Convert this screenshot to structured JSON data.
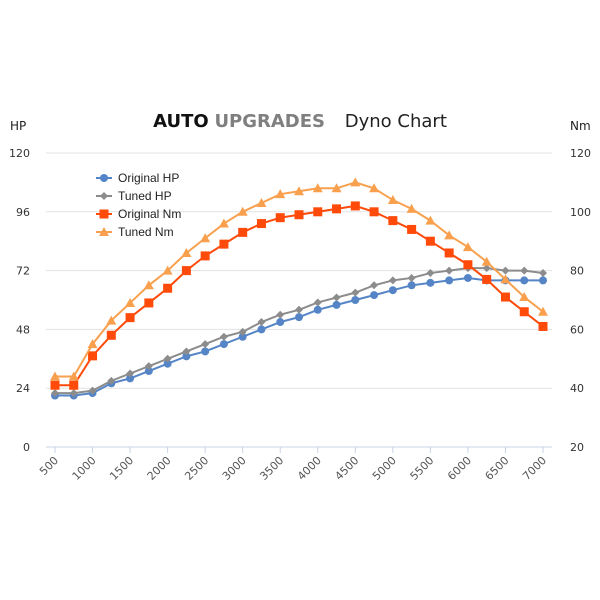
{
  "header": {
    "brand_part1": "AUTO",
    "brand_part2": "UPGRADES",
    "subtitle": "Dyno Chart",
    "left_unit": "HP",
    "right_unit": "Nm"
  },
  "chart_data": {
    "type": "line",
    "title": "AUTO UPGRADES Dyno Chart",
    "xlabel": "",
    "ylabel": "HP",
    "y2label": "Nm",
    "x": [
      500,
      750,
      1000,
      1250,
      1500,
      1750,
      2000,
      2250,
      2500,
      2750,
      3000,
      3250,
      3500,
      3750,
      4000,
      4250,
      4500,
      4750,
      5000,
      5250,
      5500,
      5750,
      6000,
      6250,
      6500,
      6750,
      7000
    ],
    "xticks": [
      "500",
      "1000",
      "1500",
      "2000",
      "2500",
      "3000",
      "3500",
      "4000",
      "4500",
      "5000",
      "5500",
      "6000",
      "6500",
      "7000"
    ],
    "ylim": [
      0,
      120
    ],
    "yticks": [
      "0",
      "24",
      "48",
      "72",
      "96",
      "120"
    ],
    "y2lim": [
      20,
      120
    ],
    "y2ticks": [
      "20",
      "40",
      "60",
      "80",
      "100",
      "120"
    ],
    "grid": true,
    "legend_position": "top-left",
    "series": [
      {
        "name": "Original HP",
        "axis": "left",
        "color": "#5585C6",
        "marker": "circle",
        "values": [
          21,
          21,
          22,
          26,
          28,
          31,
          34,
          37,
          39,
          42,
          45,
          48,
          51,
          53,
          56,
          58,
          60,
          62,
          64,
          66,
          67,
          68,
          69,
          68,
          68,
          68,
          68
        ]
      },
      {
        "name": "Tuned HP",
        "axis": "left",
        "color": "#8C8C8C",
        "marker": "diamond",
        "values": [
          22,
          22,
          23,
          27,
          30,
          33,
          36,
          39,
          42,
          45,
          47,
          51,
          54,
          56,
          59,
          61,
          63,
          66,
          68,
          69,
          71,
          72,
          73,
          73,
          72,
          72,
          71
        ]
      },
      {
        "name": "Original Nm",
        "axis": "right",
        "color": "#FF4A0A",
        "marker": "square",
        "values": [
          41,
          41,
          51,
          58,
          64,
          69,
          74,
          80,
          85,
          89,
          93,
          96,
          98,
          99,
          100,
          101,
          102,
          100,
          97,
          94,
          90,
          86,
          82,
          77,
          71,
          66,
          61
        ]
      },
      {
        "name": "Tuned Nm",
        "axis": "right",
        "color": "#F9A04E",
        "marker": "triangle",
        "values": [
          44,
          44,
          55,
          63,
          69,
          75,
          80,
          86,
          91,
          96,
          100,
          103,
          106,
          107,
          108,
          108,
          110,
          108,
          104,
          101,
          97,
          92,
          88,
          83,
          77,
          71,
          66
        ]
      }
    ]
  }
}
